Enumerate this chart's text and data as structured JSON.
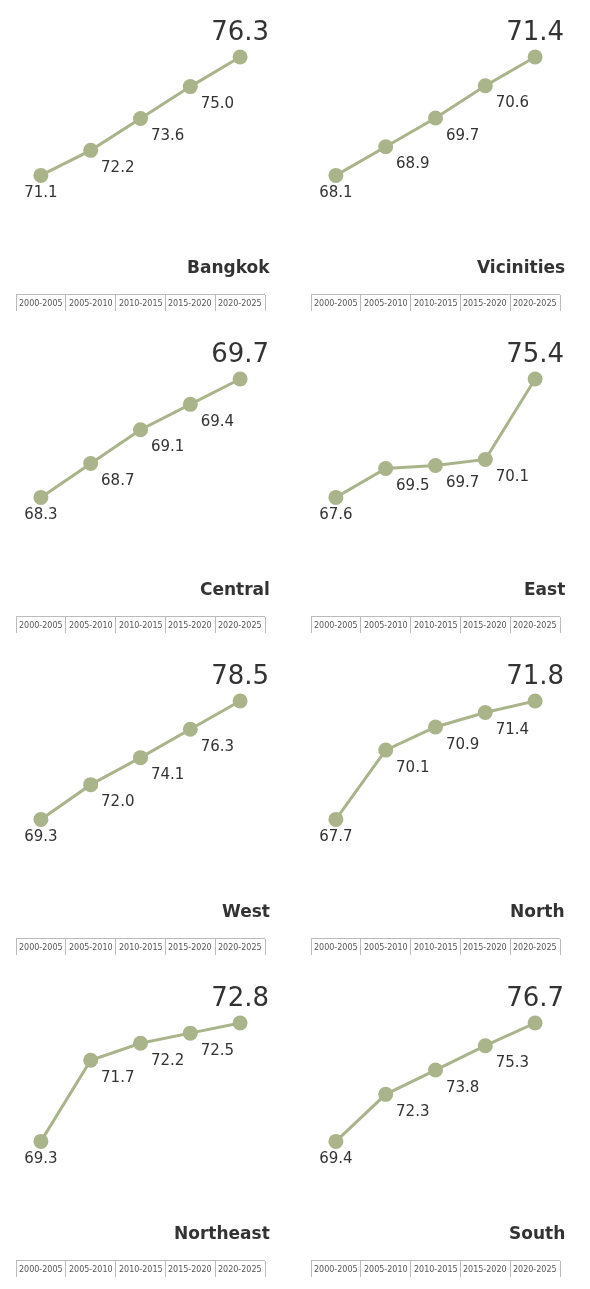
{
  "chart_data": [
    {
      "type": "line",
      "title": "Bangkok",
      "categories": [
        "2000-2005",
        "2005-2010",
        "2010-2015",
        "2015-2020",
        "2020-2025"
      ],
      "values": [
        71.1,
        72.2,
        73.6,
        75.0,
        76.3
      ],
      "value_labels": [
        "71.1",
        "72.2",
        "73.6",
        "75.0",
        "76.3"
      ],
      "color": "#a9b48a",
      "marker": "circle",
      "grid": false,
      "legend": false
    },
    {
      "type": "line",
      "title": "Vicinities",
      "categories": [
        "2000-2005",
        "2005-2010",
        "2010-2015",
        "2015-2020",
        "2020-2025"
      ],
      "values": [
        68.1,
        68.9,
        69.7,
        70.6,
        71.4
      ],
      "value_labels": [
        "68.1",
        "68.9",
        "69.7",
        "70.6",
        "71.4"
      ],
      "color": "#a9b48a",
      "marker": "circle",
      "grid": false,
      "legend": false
    },
    {
      "type": "line",
      "title": "Central",
      "categories": [
        "2000-2005",
        "2005-2010",
        "2010-2015",
        "2015-2020",
        "2020-2025"
      ],
      "values": [
        68.3,
        68.7,
        69.1,
        69.4,
        69.7
      ],
      "value_labels": [
        "68.3",
        "68.7",
        "69.1",
        "69.4",
        "69.7"
      ],
      "color": "#a9b48a",
      "marker": "circle",
      "grid": false,
      "legend": false
    },
    {
      "type": "line",
      "title": "East",
      "categories": [
        "2000-2005",
        "2005-2010",
        "2010-2015",
        "2015-2020",
        "2020-2025"
      ],
      "values": [
        67.6,
        69.5,
        69.7,
        70.1,
        75.4
      ],
      "value_labels": [
        "67.6",
        "69.5",
        "69.7",
        "70.1",
        "75.4"
      ],
      "color": "#a9b48a",
      "marker": "circle",
      "grid": false,
      "legend": false
    },
    {
      "type": "line",
      "title": "West",
      "categories": [
        "2000-2005",
        "2005-2010",
        "2010-2015",
        "2015-2020",
        "2020-2025"
      ],
      "values": [
        69.3,
        72.0,
        74.1,
        76.3,
        78.5
      ],
      "value_labels": [
        "69.3",
        "72.0",
        "74.1",
        "76.3",
        "78.5"
      ],
      "color": "#a9b48a",
      "marker": "circle",
      "grid": false,
      "legend": false
    },
    {
      "type": "line",
      "title": "North",
      "categories": [
        "2000-2005",
        "2005-2010",
        "2010-2015",
        "2015-2020",
        "2020-2025"
      ],
      "values": [
        67.7,
        70.1,
        70.9,
        71.4,
        71.8
      ],
      "value_labels": [
        "67.7",
        "70.1",
        "70.9",
        "71.4",
        "71.8"
      ],
      "color": "#a9b48a",
      "marker": "circle",
      "grid": false,
      "legend": false
    },
    {
      "type": "line",
      "title": "Northeast",
      "categories": [
        "2000-2005",
        "2005-2010",
        "2010-2015",
        "2015-2020",
        "2020-2025"
      ],
      "values": [
        69.3,
        71.7,
        72.2,
        72.5,
        72.8
      ],
      "value_labels": [
        "69.3",
        "71.7",
        "72.2",
        "72.5",
        "72.8"
      ],
      "color": "#a9b48a",
      "marker": "circle",
      "grid": false,
      "legend": false
    },
    {
      "type": "line",
      "title": "South",
      "categories": [
        "2000-2005",
        "2005-2010",
        "2010-2015",
        "2015-2020",
        "2020-2025"
      ],
      "values": [
        69.4,
        72.3,
        73.8,
        75.3,
        76.7
      ],
      "value_labels": [
        "69.4",
        "72.3",
        "73.8",
        "75.3",
        "76.7"
      ],
      "color": "#a9b48a",
      "marker": "circle",
      "grid": false,
      "legend": false
    }
  ]
}
